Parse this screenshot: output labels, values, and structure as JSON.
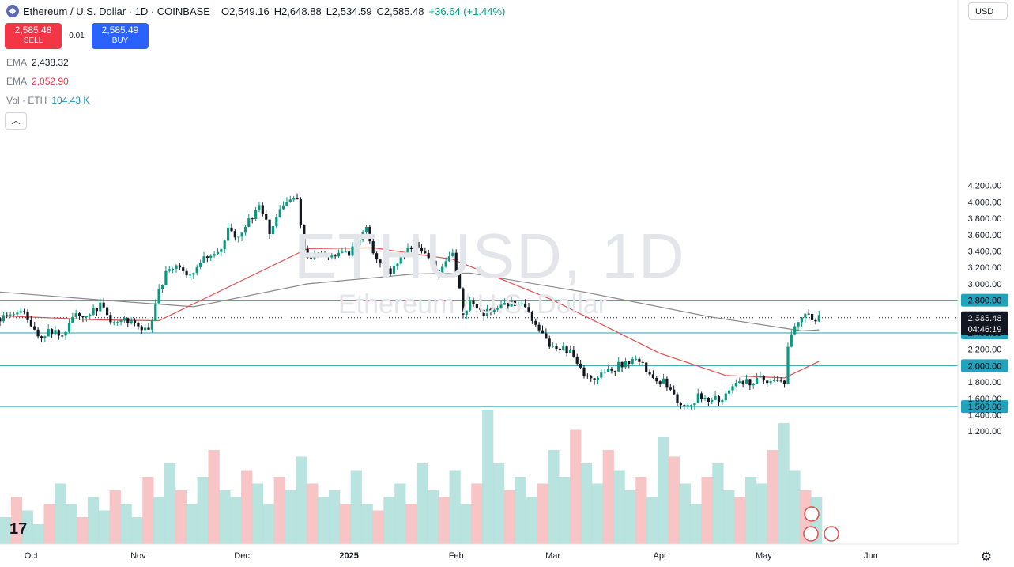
{
  "header": {
    "symbol_title": "Ethereum / U.S. Dollar · 1D · COINBASE",
    "open_key": "O",
    "open": "2,549.16",
    "high_key": "H",
    "high": "2,648.88",
    "low_key": "L",
    "low": "2,534.59",
    "close_key": "C",
    "close": "2,585.48",
    "change": "+36.64 (+1.44%)"
  },
  "trade": {
    "sell_price": "2,585.48",
    "sell_label": "SELL",
    "spread": "0.01",
    "buy_price": "2,585.49",
    "buy_label": "BUY"
  },
  "indicators": [
    {
      "name": "EMA",
      "value": "2,438.32",
      "color": "#787b86"
    },
    {
      "name": "EMA",
      "value": "2,052.90",
      "color": "#f23645"
    },
    {
      "name": "Vol · ETH",
      "value": "104.43 K",
      "color": "#2196b8"
    }
  ],
  "currency": "USD",
  "watermark": {
    "main": "ETHUSD, 1D",
    "sub": "Ethereum / U.S. Dollar"
  },
  "icons": {
    "collapse": "chevron-up-icon",
    "logo": "tradingview-logo",
    "settings": "gear-icon",
    "flag": "us-flag-icon",
    "event": "lightning-icon",
    "coin": "ethereum-icon"
  },
  "colors": {
    "up": "#089981",
    "down": "#131722",
    "ema_slow": "#888888",
    "ema_fast": "#e04e4e",
    "hline": "#2aa0b5",
    "label_bg": "#22a3bd",
    "price_label_bg": "#131722",
    "vol_up": "#a8dcd6",
    "vol_down": "#f5b7b7"
  },
  "chart_data": {
    "type": "candlestick",
    "title": "Ethereum / U.S. Dollar · 1D · COINBASE",
    "y_axis": {
      "ticks": [
        "4,200.00",
        "4,000.00",
        "3,800.00",
        "3,600.00",
        "3,400.00",
        "3,200.00",
        "3,000.00",
        "2,800.00",
        "2,600.00",
        "2,400.00",
        "2,200.00",
        "2,000.00",
        "1,800.00",
        "1,600.00",
        "1,400.00",
        "1,200.00"
      ],
      "range": [
        1150,
        4250
      ]
    },
    "x_axis": {
      "labels": [
        "Oct",
        "Nov",
        "Dec",
        "2025",
        "Feb",
        "Mar",
        "Apr",
        "May",
        "Jun"
      ],
      "range": [
        "2024-09-22",
        "2025-06-12"
      ]
    },
    "horizontal_levels": [
      {
        "label": "2,800.00",
        "value": 2800
      },
      {
        "label": "2,400.00",
        "value": 2400
      },
      {
        "label": "2,000.00",
        "value": 2000
      },
      {
        "label": "1,500.00",
        "value": 1500
      }
    ],
    "current_price": {
      "label": "2,585.48",
      "value": 2585.48,
      "countdown": "04:46:19"
    },
    "close_series": [
      [
        "2024-09-22",
        2580
      ],
      [
        "2024-09-26",
        2640
      ],
      [
        "2024-09-29",
        2660
      ],
      [
        "2024-10-01",
        2450
      ],
      [
        "2024-10-03",
        2360
      ],
      [
        "2024-10-07",
        2420
      ],
      [
        "2024-10-10",
        2390
      ],
      [
        "2024-10-14",
        2620
      ],
      [
        "2024-10-18",
        2650
      ],
      [
        "2024-10-21",
        2740
      ],
      [
        "2024-10-24",
        2530
      ],
      [
        "2024-10-28",
        2580
      ],
      [
        "2024-10-31",
        2520
      ],
      [
        "2024-11-04",
        2400
      ],
      [
        "2024-11-07",
        2900
      ],
      [
        "2024-11-09",
        3120
      ],
      [
        "2024-11-12",
        3250
      ],
      [
        "2024-11-15",
        3100
      ],
      [
        "2024-11-18",
        3200
      ],
      [
        "2024-11-21",
        3350
      ],
      [
        "2024-11-24",
        3360
      ],
      [
        "2024-11-27",
        3650
      ],
      [
        "2024-11-29",
        3580
      ],
      [
        "2024-12-02",
        3700
      ],
      [
        "2024-12-06",
        3950
      ],
      [
        "2024-12-09",
        3650
      ],
      [
        "2024-12-12",
        3880
      ],
      [
        "2024-12-16",
        4050
      ],
      [
        "2024-12-17",
        3990
      ],
      [
        "2024-12-19",
        3450
      ],
      [
        "2024-12-20",
        3300
      ],
      [
        "2024-12-23",
        3400
      ],
      [
        "2024-12-26",
        3330
      ],
      [
        "2024-12-29",
        3360
      ],
      [
        "2025-01-01",
        3350
      ],
      [
        "2025-01-03",
        3500
      ],
      [
        "2025-01-06",
        3700
      ],
      [
        "2025-01-08",
        3350
      ],
      [
        "2025-01-10",
        3280
      ],
      [
        "2025-01-13",
        3120
      ],
      [
        "2025-01-16",
        3350
      ],
      [
        "2025-01-20",
        3470
      ],
      [
        "2025-01-24",
        3300
      ],
      [
        "2025-01-27",
        3150
      ],
      [
        "2025-01-31",
        3350
      ],
      [
        "2025-02-02",
        2900
      ],
      [
        "2025-02-03",
        2650
      ],
      [
        "2025-02-05",
        2780
      ],
      [
        "2025-02-09",
        2650
      ],
      [
        "2025-02-13",
        2700
      ],
      [
        "2025-02-17",
        2750
      ],
      [
        "2025-02-20",
        2740
      ],
      [
        "2025-02-24",
        2500
      ],
      [
        "2025-02-26",
        2350
      ],
      [
        "2025-02-28",
        2220
      ],
      [
        "2025-03-02",
        2210
      ],
      [
        "2025-03-04",
        2200
      ],
      [
        "2025-03-06",
        2160
      ],
      [
        "2025-03-10",
        1880
      ],
      [
        "2025-03-13",
        1860
      ],
      [
        "2025-03-17",
        1920
      ],
      [
        "2025-03-20",
        2000
      ],
      [
        "2025-03-24",
        2080
      ],
      [
        "2025-03-27",
        2030
      ],
      [
        "2025-03-30",
        1820
      ],
      [
        "2025-04-02",
        1800
      ],
      [
        "2025-04-06",
        1560
      ],
      [
        "2025-04-09",
        1520
      ],
      [
        "2025-04-12",
        1620
      ],
      [
        "2025-04-16",
        1580
      ],
      [
        "2025-04-19",
        1590
      ],
      [
        "2025-04-22",
        1760
      ],
      [
        "2025-04-25",
        1800
      ],
      [
        "2025-04-28",
        1800
      ],
      [
        "2025-05-01",
        1840
      ],
      [
        "2025-05-04",
        1790
      ],
      [
        "2025-05-07",
        1810
      ],
      [
        "2025-05-08",
        2200
      ],
      [
        "2025-05-09",
        2350
      ],
      [
        "2025-05-11",
        2570
      ],
      [
        "2025-05-13",
        2680
      ],
      [
        "2025-05-14",
        2600
      ],
      [
        "2025-05-16",
        2550
      ],
      [
        "2025-05-17",
        2585
      ]
    ],
    "ema_slow_series": [
      [
        "2024-09-22",
        2900
      ],
      [
        "2024-10-22",
        2800
      ],
      [
        "2024-11-17",
        2720
      ],
      [
        "2024-12-20",
        3000
      ],
      [
        "2025-01-20",
        3120
      ],
      [
        "2025-02-05",
        3130
      ],
      [
        "2025-03-10",
        2900
      ],
      [
        "2025-04-15",
        2600
      ],
      [
        "2025-05-12",
        2425
      ],
      [
        "2025-05-17",
        2438
      ]
    ],
    "ema_fast_series": [
      [
        "2024-09-22",
        2610
      ],
      [
        "2024-10-20",
        2560
      ],
      [
        "2024-11-07",
        2550
      ],
      [
        "2024-12-20",
        3430
      ],
      [
        "2025-01-08",
        3440
      ],
      [
        "2025-01-31",
        3300
      ],
      [
        "2025-03-01",
        2800
      ],
      [
        "2025-04-01",
        2150
      ],
      [
        "2025-04-20",
        1880
      ],
      [
        "2025-05-07",
        1850
      ],
      [
        "2025-05-17",
        2053
      ]
    ],
    "volume_profile": [
      0.2,
      0.35,
      0.25,
      0.15,
      0.3,
      0.45,
      0.3,
      0.2,
      0.35,
      0.25,
      0.4,
      0.3,
      0.2,
      0.5,
      0.35,
      0.6,
      0.4,
      0.3,
      0.5,
      0.7,
      0.4,
      0.35,
      0.55,
      0.45,
      0.3,
      0.5,
      0.4,
      0.65,
      0.45,
      0.35,
      0.4,
      0.3,
      0.55,
      0.3,
      0.25,
      0.35,
      0.45,
      0.3,
      0.6,
      0.4,
      0.35,
      0.55,
      0.3,
      0.45,
      1.0,
      0.6,
      0.4,
      0.5,
      0.35,
      0.45,
      0.7,
      0.5,
      0.85,
      0.6,
      0.45,
      0.7,
      0.55,
      0.4,
      0.5,
      0.35,
      0.8,
      0.65,
      0.45,
      0.3,
      0.5,
      0.6,
      0.4,
      0.35,
      0.5,
      0.45,
      0.7,
      0.9,
      0.55,
      0.4,
      0.35
    ]
  }
}
